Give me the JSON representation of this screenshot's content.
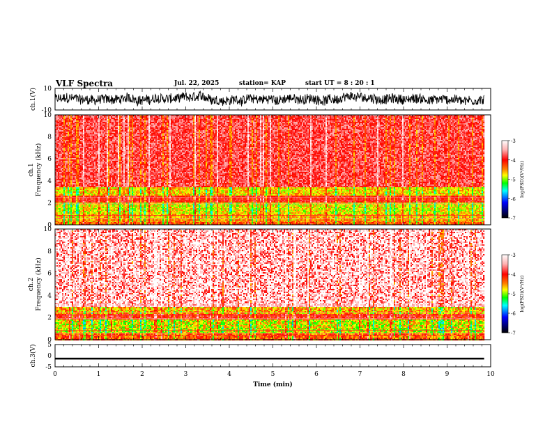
{
  "header": {
    "title": "VLF Spectra",
    "date": "Jul. 22, 2025",
    "station": "station= KAP",
    "start": "start UT = 8 : 20 : 1"
  },
  "chart_data": [
    {
      "type": "line",
      "id": "ch1-waveform",
      "ylabel": "ch.1(V)",
      "ylim": [
        -10,
        10
      ],
      "yticks": [
        10,
        -10
      ],
      "xlim": [
        0,
        10
      ],
      "x_data_end": 9.85,
      "description_band": "noisy waveform mostly between -7 and 7"
    },
    {
      "type": "heatmap",
      "id": "ch1-spectrogram",
      "ylabel_top": "ch.1",
      "ylabel": "Frequency (kHz)",
      "ylim": [
        0,
        10
      ],
      "yticks": [
        0,
        2,
        4,
        6,
        8,
        10
      ],
      "xlim": [
        0,
        10
      ],
      "x_data_end": 9.85,
      "colorbar": {
        "label": "log(PSD)(V²/Hz)",
        "range": [
          -7,
          -3
        ],
        "ticks": [
          -3,
          -4,
          -5,
          -6,
          -7
        ]
      },
      "bands": [
        {
          "f_low": 0.0,
          "f_high": 0.3,
          "level": -4.3
        },
        {
          "f_low": 0.3,
          "f_high": 1.0,
          "level": -4.6
        },
        {
          "f_low": 1.0,
          "f_high": 2.0,
          "level": -4.8
        },
        {
          "f_low": 2.0,
          "f_high": 2.6,
          "level": -4.0
        },
        {
          "f_low": 2.6,
          "f_high": 3.4,
          "level": -4.7
        },
        {
          "f_low": 3.4,
          "f_high": 10.0,
          "level": -3.8
        }
      ]
    },
    {
      "type": "heatmap",
      "id": "ch2-spectrogram",
      "ylabel_top": "ch.2",
      "ylabel": "Frequency (kHz)",
      "ylim": [
        0,
        10
      ],
      "yticks": [
        0,
        2,
        4,
        6,
        8,
        10
      ],
      "xlim": [
        0,
        10
      ],
      "x_data_end": 9.85,
      "colorbar": {
        "label": "log(PSD)(V²/Hz)",
        "range": [
          -7,
          -3
        ],
        "ticks": [
          -3,
          -4,
          -5,
          -6,
          -7
        ]
      },
      "bands": [
        {
          "f_low": 0.0,
          "f_high": 0.6,
          "level": -4.3
        },
        {
          "f_low": 0.6,
          "f_high": 1.8,
          "level": -4.8
        },
        {
          "f_low": 1.8,
          "f_high": 2.3,
          "level": -4.0
        },
        {
          "f_low": 2.3,
          "f_high": 3.0,
          "level": -4.6
        },
        {
          "f_low": 3.0,
          "f_high": 10.0,
          "level": -3.3
        }
      ]
    },
    {
      "type": "line",
      "id": "ch3-waveform",
      "ylabel": "ch.3(V)",
      "ylim": [
        -5,
        5
      ],
      "yticks": [
        5,
        0,
        -5
      ],
      "xlim": [
        0,
        10
      ],
      "x_data_end": 9.85,
      "center_value": -1.3,
      "band_halfwidth": 0.4
    }
  ],
  "xaxis": {
    "label": "Time (min)",
    "ticks": [
      "0",
      "1",
      "2",
      "3",
      "4",
      "5",
      "6",
      "7",
      "8",
      "9",
      "10"
    ]
  }
}
